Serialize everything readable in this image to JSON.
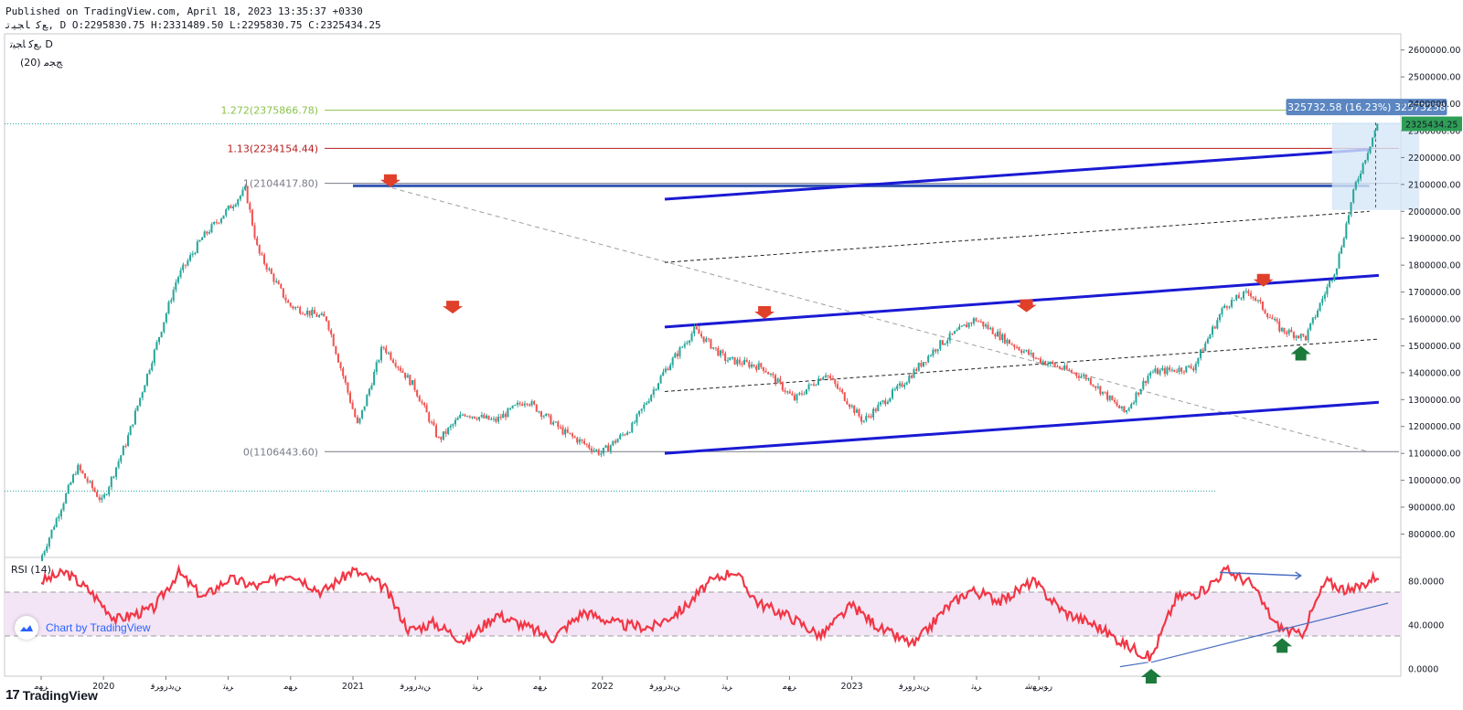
{
  "header": {
    "line1": "Published on TradingView.com, April 18, 2023 13:35:37 +0330",
    "line2": "ﻊﮐ ﺎﺠﯿﺗ, D O:2295830.75 H:2331489.50 L:2295830.75 C:2325434.25"
  },
  "legend": {
    "symbol": "ﻊﮐ ﺎﺠﯿﺗ, D",
    "indicator": "(20) ﺞﺠﻣ"
  },
  "watermark": {
    "text": "Chart by TradingView",
    "icon": "tradingview-cloud-icon"
  },
  "footer_logo": {
    "mark": "17",
    "text": "TradingView"
  },
  "colors": {
    "up": "#26a69a",
    "down": "#ef5350",
    "channel": "#1a1ad4",
    "fib_1272": "#8bc34a",
    "fib_113": "#b71c1c",
    "fib_1": "#787b86",
    "rsi": "#f23645",
    "rsi_band": "#f3e5f5",
    "price_tag": "#2e9e57",
    "measure_box": "#d6e6f7",
    "measure_label": "#5b86c2"
  },
  "chart_data": [
    {
      "type": "candlestick",
      "title": "ﻊﮐ ﺎﺠﯿﺗ, D",
      "x_labels": [
        "ﺮﻬﻣ",
        "2020",
        "ﻦﯾﺩﺭﻭﺮﻓ",
        "ﺮﯿﺗ",
        "ﺮﻬﻣ",
        "2021",
        "ﻦﯾﺩﺭﻭﺮﻓ",
        "ﺮﯿﺗ",
        "ﺮﻬﻣ",
        "2022",
        "ﻦﯾﺩﺭﻭﺮﻓ",
        "ﺮﯿﺗ",
        "ﺮﻬﻣ",
        "2023",
        "ﻦﯾﺩﺭﻭﺮﻓ",
        "ﺮﯿﺗ",
        "ﺭﻮﯾﺮﻬﺷ"
      ],
      "y_ticks": [
        "2600000.00",
        "2500000.00",
        "2400000.00",
        "2300000.00",
        "2200000.00",
        "2100000.00",
        "2000000.00",
        "1900000.00",
        "1800000.00",
        "1700000.00",
        "1600000.00",
        "1500000.00",
        "1400000.00",
        "1300000.00",
        "1200000.00",
        "1100000.00",
        "1000000.00",
        "900000.00",
        "800000.00"
      ],
      "ylim": [
        720000,
        2650000
      ],
      "close_path": [
        [
          0.0,
          700000
        ],
        [
          0.6,
          1050000
        ],
        [
          1.0,
          920000
        ],
        [
          1.4,
          1150000
        ],
        [
          2.2,
          1750000
        ],
        [
          2.6,
          1900000
        ],
        [
          3.3,
          2080000
        ],
        [
          3.5,
          1850000
        ],
        [
          4.0,
          1650000
        ],
        [
          4.6,
          1600000
        ],
        [
          5.1,
          1200000
        ],
        [
          5.5,
          1500000
        ],
        [
          6.0,
          1350000
        ],
        [
          6.4,
          1150000
        ],
        [
          6.8,
          1250000
        ],
        [
          7.3,
          1220000
        ],
        [
          7.8,
          1300000
        ],
        [
          8.4,
          1180000
        ],
        [
          9.0,
          1100000
        ],
        [
          9.5,
          1200000
        ],
        [
          10.0,
          1400000
        ],
        [
          10.5,
          1560000
        ],
        [
          11.0,
          1450000
        ],
        [
          11.6,
          1420000
        ],
        [
          12.1,
          1300000
        ],
        [
          12.6,
          1400000
        ],
        [
          13.2,
          1220000
        ],
        [
          13.8,
          1350000
        ],
        [
          14.4,
          1500000
        ],
        [
          15.0,
          1600000
        ],
        [
          15.5,
          1520000
        ],
        [
          16.0,
          1450000
        ],
        [
          16.8,
          1380000
        ],
        [
          17.4,
          1250000
        ],
        [
          17.8,
          1400000
        ],
        [
          18.5,
          1420000
        ],
        [
          19.0,
          1650000
        ],
        [
          19.4,
          1700000
        ],
        [
          19.9,
          1560000
        ],
        [
          20.3,
          1530000
        ],
        [
          20.8,
          1800000
        ],
        [
          21.1,
          2100000
        ],
        [
          21.45,
          2325434.25
        ]
      ],
      "channel_upper_lines": [
        [
          [
            10.0,
            2045000
          ],
          [
            21.3,
            2230000
          ]
        ],
        [
          [
            10.0,
            1570000
          ],
          [
            21.45,
            1762000
          ]
        ]
      ],
      "channel_lower_line": [
        [
          10.0,
          1100000
        ],
        [
          21.45,
          1290000
        ]
      ],
      "dashed_midlines": [
        [
          [
            10.0,
            1810000
          ],
          [
            21.3,
            2000000
          ]
        ],
        [
          [
            10.0,
            1330000
          ],
          [
            21.45,
            1525000
          ]
        ]
      ],
      "horizontal_support": 2095000,
      "diagonal_dashed": [
        [
          5.5,
          2095000
        ],
        [
          21.3,
          1105000
        ]
      ],
      "fibonacci": [
        {
          "label": "1.272(2375866.78)",
          "value": 2375866.78
        },
        {
          "label": "1.13(2234154.44)",
          "value": 2234154.44
        },
        {
          "label": "1(2104417.80)",
          "value": 2104417.8
        },
        {
          "label": "0(1106443.60)",
          "value": 1106443.6
        }
      ],
      "last_price_label": "2325434.25",
      "measure_label": "325732.58 (16.23%) 32573258",
      "down_arrows": [
        [
          5.6,
          2090000
        ],
        [
          6.6,
          1620000
        ],
        [
          11.6,
          1600000
        ],
        [
          15.8,
          1625000
        ],
        [
          19.6,
          1720000
        ]
      ],
      "up_arrows": [
        [
          20.2,
          1500000
        ]
      ]
    },
    {
      "type": "line",
      "title": "RSI (14)",
      "y_ticks": [
        "80.0000",
        "40.0000",
        "0.0000"
      ],
      "ylim": [
        -5,
        100
      ],
      "band": [
        30,
        70
      ],
      "values": [
        [
          0.0,
          80
        ],
        [
          0.4,
          88
        ],
        [
          0.8,
          70
        ],
        [
          1.2,
          45
        ],
        [
          1.8,
          55
        ],
        [
          2.2,
          88
        ],
        [
          2.6,
          65
        ],
        [
          3.0,
          82
        ],
        [
          3.5,
          75
        ],
        [
          4.0,
          88
        ],
        [
          4.5,
          70
        ],
        [
          5.0,
          90
        ],
        [
          5.5,
          75
        ],
        [
          5.9,
          35
        ],
        [
          6.3,
          42
        ],
        [
          6.8,
          25
        ],
        [
          7.3,
          50
        ],
        [
          7.8,
          38
        ],
        [
          8.2,
          28
        ],
        [
          8.7,
          52
        ],
        [
          9.3,
          40
        ],
        [
          9.8,
          38
        ],
        [
          10.3,
          55
        ],
        [
          10.7,
          78
        ],
        [
          11.1,
          90
        ],
        [
          11.5,
          60
        ],
        [
          12.0,
          48
        ],
        [
          12.5,
          30
        ],
        [
          13.0,
          58
        ],
        [
          13.5,
          35
        ],
        [
          14.0,
          22
        ],
        [
          14.5,
          55
        ],
        [
          14.9,
          72
        ],
        [
          15.4,
          62
        ],
        [
          15.9,
          80
        ],
        [
          16.4,
          52
        ],
        [
          16.9,
          40
        ],
        [
          17.4,
          22
        ],
        [
          17.8,
          10
        ],
        [
          18.2,
          65
        ],
        [
          18.6,
          70
        ],
        [
          19.0,
          90
        ],
        [
          19.4,
          78
        ],
        [
          19.8,
          40
        ],
        [
          20.2,
          30
        ],
        [
          20.6,
          80
        ],
        [
          21.0,
          70
        ],
        [
          21.45,
          86
        ]
      ],
      "divergence_top": [
        [
          18.9,
          88
        ],
        [
          20.2,
          85
        ]
      ],
      "divergence_bottom": [
        [
          17.8,
          6
        ],
        [
          21.6,
          60
        ]
      ],
      "up_arrows": [
        [
          17.8,
          0
        ],
        [
          19.9,
          28
        ]
      ]
    }
  ]
}
